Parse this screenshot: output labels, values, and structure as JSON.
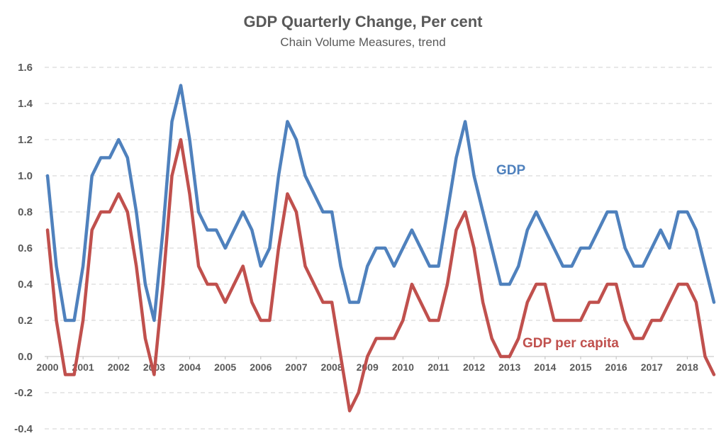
{
  "chart_data": {
    "type": "line",
    "title": "GDP Quarterly Change, Per cent",
    "subtitle": "Chain Volume Measures, trend",
    "ylim": [
      -0.4,
      1.6
    ],
    "yticks": [
      "-0.4",
      "-0.2",
      "0.0",
      "0.2",
      "0.4",
      "0.6",
      "0.8",
      "1.0",
      "1.2",
      "1.4",
      "1.6"
    ],
    "year_labels": [
      "2000",
      "2001",
      "2002",
      "2003",
      "2004",
      "2005",
      "2006",
      "2007",
      "2008",
      "2009",
      "2010",
      "2011",
      "2012",
      "2013",
      "2014",
      "2015",
      "2016",
      "2017",
      "2018"
    ],
    "grid": "horizontal dashed",
    "series": [
      {
        "name": "GDP",
        "color": "#4f81bd",
        "values": [
          1.0,
          0.5,
          0.2,
          0.2,
          0.5,
          1.0,
          1.1,
          1.1,
          1.2,
          1.1,
          0.8,
          0.4,
          0.2,
          0.7,
          1.3,
          1.5,
          1.2,
          0.8,
          0.7,
          0.7,
          0.6,
          0.7,
          0.8,
          0.7,
          0.5,
          0.6,
          1.0,
          1.3,
          1.2,
          1.0,
          0.9,
          0.8,
          0.8,
          0.5,
          0.3,
          0.3,
          0.5,
          0.6,
          0.6,
          0.5,
          0.6,
          0.7,
          0.6,
          0.5,
          0.5,
          0.8,
          1.1,
          1.3,
          1.0,
          0.8,
          0.6,
          0.4,
          0.4,
          0.5,
          0.7,
          0.8,
          0.7,
          0.6,
          0.5,
          0.5,
          0.6,
          0.6,
          0.7,
          0.8,
          0.8,
          0.6,
          0.5,
          0.5,
          0.6,
          0.7,
          0.6,
          0.8,
          0.8,
          0.7,
          0.5,
          0.3
        ]
      },
      {
        "name": "GDP per capita",
        "color": "#c0504d",
        "values": [
          0.7,
          0.2,
          -0.1,
          -0.1,
          0.2,
          0.7,
          0.8,
          0.8,
          0.9,
          0.8,
          0.5,
          0.1,
          -0.1,
          0.4,
          1.0,
          1.2,
          0.9,
          0.5,
          0.4,
          0.4,
          0.3,
          0.4,
          0.5,
          0.3,
          0.2,
          0.2,
          0.6,
          0.9,
          0.8,
          0.5,
          0.4,
          0.3,
          0.3,
          0.0,
          -0.3,
          -0.2,
          0.0,
          0.1,
          0.1,
          0.1,
          0.2,
          0.4,
          0.3,
          0.2,
          0.2,
          0.4,
          0.7,
          0.8,
          0.6,
          0.3,
          0.1,
          0.0,
          0.0,
          0.1,
          0.3,
          0.4,
          0.4,
          0.2,
          0.2,
          0.2,
          0.2,
          0.3,
          0.3,
          0.4,
          0.4,
          0.2,
          0.1,
          0.1,
          0.2,
          0.2,
          0.3,
          0.4,
          0.4,
          0.3,
          0.0,
          -0.1
        ]
      }
    ]
  }
}
